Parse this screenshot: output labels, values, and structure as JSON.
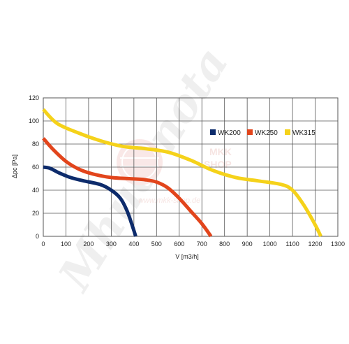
{
  "chart_data": {
    "type": "line",
    "title": "",
    "xlabel": "V [m3/h]",
    "ylabel": "Δpc [Pa]",
    "xlim": [
      0,
      1300
    ],
    "ylim": [
      0,
      120
    ],
    "xticks": [
      0,
      100,
      200,
      300,
      400,
      500,
      600,
      700,
      800,
      900,
      1000,
      1100,
      1200,
      1300
    ],
    "yticks": [
      0,
      20,
      40,
      60,
      80,
      100,
      120
    ],
    "grid": true,
    "legend_position": "top-right",
    "series": [
      {
        "name": "WK200",
        "color": "#0d2b6b",
        "points": [
          [
            0,
            60
          ],
          [
            30,
            59
          ],
          [
            70,
            55
          ],
          [
            120,
            51
          ],
          [
            180,
            48
          ],
          [
            250,
            45
          ],
          [
            300,
            40
          ],
          [
            340,
            33
          ],
          [
            370,
            22
          ],
          [
            395,
            8
          ],
          [
            408,
            0
          ]
        ]
      },
      {
        "name": "WK250",
        "color": "#e2451c",
        "points": [
          [
            0,
            85
          ],
          [
            40,
            76
          ],
          [
            100,
            65
          ],
          [
            160,
            58
          ],
          [
            220,
            54
          ],
          [
            300,
            51
          ],
          [
            380,
            50
          ],
          [
            450,
            49
          ],
          [
            500,
            47
          ],
          [
            550,
            42
          ],
          [
            600,
            33
          ],
          [
            650,
            22
          ],
          [
            700,
            11
          ],
          [
            740,
            0
          ]
        ]
      },
      {
        "name": "WK315",
        "color": "#f5d21a",
        "points": [
          [
            0,
            110
          ],
          [
            60,
            98
          ],
          [
            150,
            90
          ],
          [
            250,
            83
          ],
          [
            350,
            78
          ],
          [
            450,
            76
          ],
          [
            550,
            73
          ],
          [
            650,
            66
          ],
          [
            750,
            57
          ],
          [
            850,
            51
          ],
          [
            950,
            48
          ],
          [
            1050,
            45
          ],
          [
            1100,
            40
          ],
          [
            1150,
            27
          ],
          [
            1200,
            10
          ],
          [
            1225,
            0
          ]
        ]
      }
    ]
  },
  "watermark": {
    "main": "Mhuo-nota",
    "stamp_top": "MKK",
    "stamp_bottom": "SHOP",
    "url": "www.mkk-shop.de"
  }
}
